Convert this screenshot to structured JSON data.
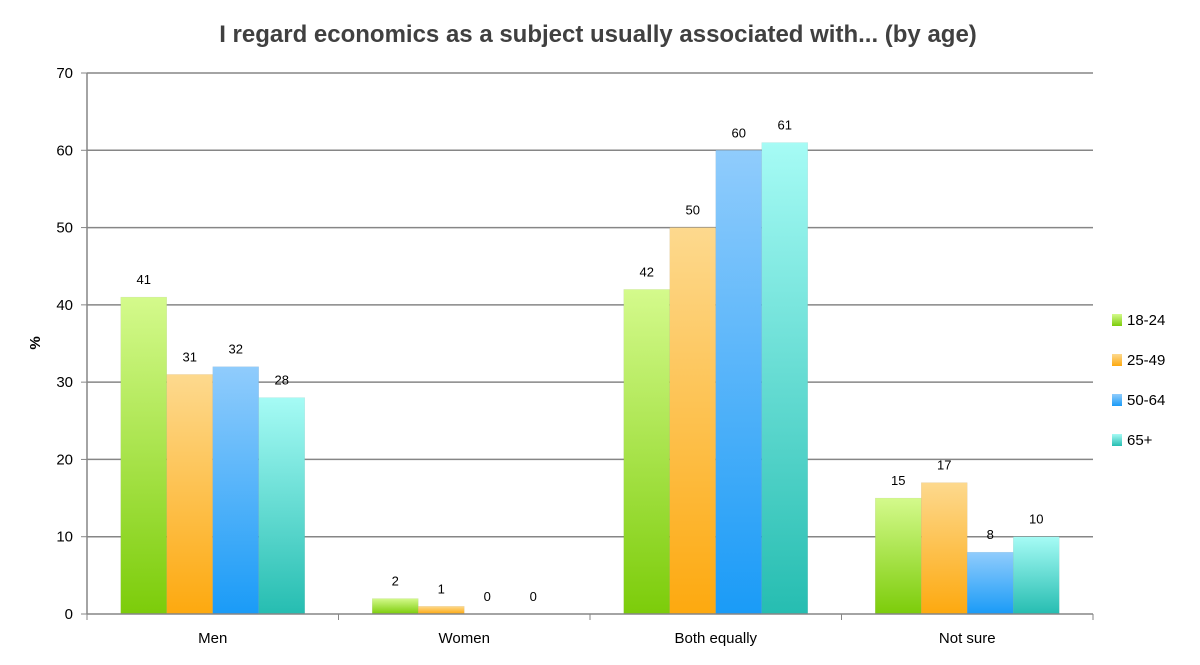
{
  "chart_data": {
    "type": "bar",
    "title": "I regard economics as a subject usually associated with... (by age)",
    "xlabel": "",
    "ylabel": "%",
    "ylim": [
      0,
      70
    ],
    "yticks": [
      0,
      10,
      20,
      30,
      40,
      50,
      60,
      70
    ],
    "grid": true,
    "legend_position": "right",
    "categories": [
      "Men",
      "Women",
      "Both equally",
      "Not sure"
    ],
    "series": [
      {
        "name": "18-24",
        "values": [
          41,
          2,
          42,
          15
        ],
        "color_top": "#d4fa8c",
        "color_bottom": "#7ccc0a"
      },
      {
        "name": "25-49",
        "values": [
          31,
          1,
          50,
          17
        ],
        "color_top": "#fdd98e",
        "color_bottom": "#fda90f"
      },
      {
        "name": "50-64",
        "values": [
          32,
          0,
          60,
          8
        ],
        "color_top": "#90ccfc",
        "color_bottom": "#1a9bf7"
      },
      {
        "name": "65+",
        "values": [
          28,
          0,
          61,
          10
        ],
        "color_top": "#a6fbf5",
        "color_bottom": "#26bdb1"
      }
    ]
  }
}
